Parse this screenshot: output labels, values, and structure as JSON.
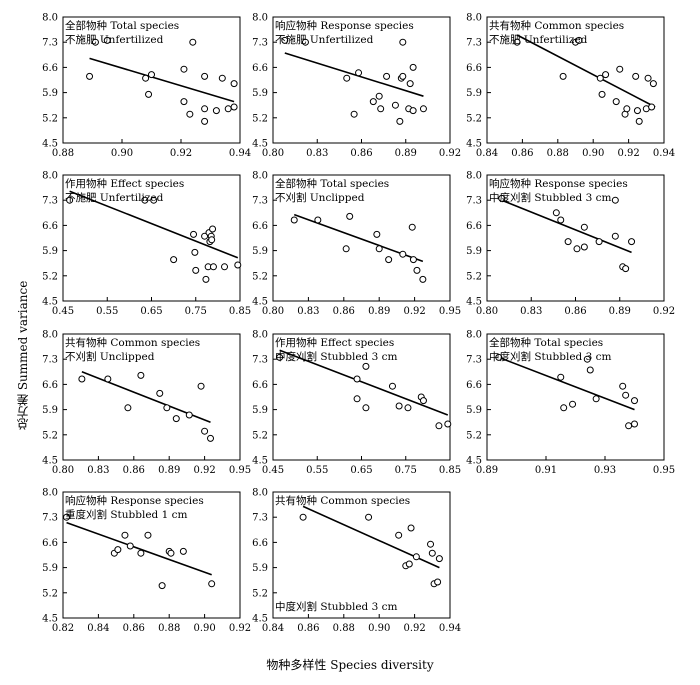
{
  "figure": {
    "ylabel": "总方差 Summed variance",
    "xlabel": "物种多样性 Species diversity",
    "colors": {
      "axis": "#000000",
      "marker": "#000000",
      "line": "#000000"
    }
  },
  "chart_data": [
    {
      "type": "scatter",
      "title": "全部物种 Total species",
      "subtitle": "不施肥 Unfertilized",
      "xlim": [
        0.88,
        0.94
      ],
      "ylim": [
        4.5,
        8.0
      ],
      "xticks": [
        "0.88",
        "0.90",
        "0.92",
        "0.94"
      ],
      "yticks": [
        "4.5",
        "5.2",
        "5.9",
        "6.6",
        "7.3",
        "8.0"
      ],
      "points": [
        [
          0.889,
          6.35
        ],
        [
          0.891,
          7.3
        ],
        [
          0.895,
          7.35
        ],
        [
          0.908,
          6.3
        ],
        [
          0.909,
          5.85
        ],
        [
          0.91,
          6.4
        ],
        [
          0.921,
          5.65
        ],
        [
          0.921,
          6.55
        ],
        [
          0.923,
          5.3
        ],
        [
          0.924,
          7.3
        ],
        [
          0.928,
          6.35
        ],
        [
          0.928,
          5.45
        ],
        [
          0.928,
          5.1
        ],
        [
          0.932,
          5.4
        ],
        [
          0.934,
          6.3
        ],
        [
          0.936,
          5.45
        ],
        [
          0.938,
          6.15
        ],
        [
          0.938,
          5.5
        ]
      ],
      "fit": [
        [
          0.889,
          6.85
        ],
        [
          0.938,
          5.65
        ]
      ]
    },
    {
      "type": "scatter",
      "title": "响应物种 Response species",
      "subtitle": "不施肥 Unfertilized",
      "xlim": [
        0.8,
        0.92
      ],
      "ylim": [
        4.5,
        8.0
      ],
      "xticks": [
        "0.80",
        "0.83",
        "0.86",
        "0.89",
        "0.92"
      ],
      "yticks": [
        "4.5",
        "5.2",
        "5.9",
        "6.6",
        "7.3",
        "8.0"
      ],
      "points": [
        [
          0.808,
          7.35
        ],
        [
          0.822,
          7.3
        ],
        [
          0.85,
          6.3
        ],
        [
          0.855,
          5.3
        ],
        [
          0.858,
          6.45
        ],
        [
          0.868,
          5.65
        ],
        [
          0.872,
          5.8
        ],
        [
          0.873,
          5.45
        ],
        [
          0.877,
          6.35
        ],
        [
          0.883,
          5.55
        ],
        [
          0.886,
          5.1
        ],
        [
          0.887,
          6.3
        ],
        [
          0.888,
          6.35
        ],
        [
          0.888,
          7.3
        ],
        [
          0.892,
          5.45
        ],
        [
          0.893,
          6.15
        ],
        [
          0.895,
          5.4
        ],
        [
          0.895,
          6.6
        ],
        [
          0.902,
          5.45
        ]
      ],
      "fit": [
        [
          0.808,
          7.0
        ],
        [
          0.902,
          5.8
        ]
      ]
    },
    {
      "type": "scatter",
      "title": "共有物种 Common species",
      "subtitle": "不施肥 Unfertilized",
      "xlim": [
        0.84,
        0.94
      ],
      "ylim": [
        4.5,
        8.0
      ],
      "xticks": [
        "0.84",
        "0.86",
        "0.88",
        "0.90",
        "0.92",
        "0.94"
      ],
      "yticks": [
        "4.5",
        "5.2",
        "5.9",
        "6.6",
        "7.3",
        "8.0"
      ],
      "points": [
        [
          0.857,
          7.3
        ],
        [
          0.883,
          6.35
        ],
        [
          0.89,
          7.3
        ],
        [
          0.892,
          7.35
        ],
        [
          0.904,
          6.3
        ],
        [
          0.905,
          5.85
        ],
        [
          0.907,
          6.4
        ],
        [
          0.913,
          5.65
        ],
        [
          0.915,
          6.55
        ],
        [
          0.918,
          5.3
        ],
        [
          0.919,
          5.45
        ],
        [
          0.924,
          6.35
        ],
        [
          0.925,
          5.4
        ],
        [
          0.926,
          5.1
        ],
        [
          0.93,
          5.45
        ],
        [
          0.931,
          6.3
        ],
        [
          0.933,
          5.5
        ],
        [
          0.934,
          6.15
        ]
      ],
      "fit": [
        [
          0.857,
          7.5
        ],
        [
          0.935,
          5.5
        ]
      ]
    },
    {
      "type": "scatter",
      "title": "作用物种 Effect species",
      "subtitle": "不施肥 Unfertilized",
      "xlim": [
        0.45,
        0.85
      ],
      "ylim": [
        4.5,
        8.0
      ],
      "xticks": [
        "0.45",
        "0.55",
        "0.65",
        "0.75",
        "0.85"
      ],
      "yticks": [
        "4.5",
        "5.2",
        "5.9",
        "6.6",
        "7.3",
        "8.0"
      ],
      "points": [
        [
          0.465,
          7.3
        ],
        [
          0.635,
          7.3
        ],
        [
          0.655,
          7.3
        ],
        [
          0.7,
          5.65
        ],
        [
          0.745,
          6.35
        ],
        [
          0.748,
          5.85
        ],
        [
          0.75,
          5.35
        ],
        [
          0.77,
          6.3
        ],
        [
          0.773,
          5.1
        ],
        [
          0.778,
          5.45
        ],
        [
          0.78,
          6.4
        ],
        [
          0.782,
          6.15
        ],
        [
          0.785,
          6.3
        ],
        [
          0.786,
          6.2
        ],
        [
          0.788,
          6.5
        ],
        [
          0.79,
          5.45
        ],
        [
          0.815,
          5.45
        ],
        [
          0.845,
          5.5
        ]
      ],
      "fit": [
        [
          0.465,
          7.55
        ],
        [
          0.845,
          5.7
        ]
      ]
    },
    {
      "type": "scatter",
      "title": "全部物种 Total species",
      "subtitle": "不刈割 Unclipped",
      "xlim": [
        0.8,
        0.95
      ],
      "ylim": [
        4.5,
        8.0
      ],
      "xticks": [
        "0.80",
        "0.83",
        "0.86",
        "0.89",
        "0.92",
        "0.95"
      ],
      "yticks": [
        "4.5",
        "5.2",
        "5.9",
        "6.6",
        "7.3",
        "8.0"
      ],
      "points": [
        [
          0.818,
          6.75
        ],
        [
          0.838,
          6.75
        ],
        [
          0.862,
          5.95
        ],
        [
          0.865,
          6.85
        ],
        [
          0.888,
          6.35
        ],
        [
          0.89,
          5.95
        ],
        [
          0.898,
          5.65
        ],
        [
          0.91,
          5.8
        ],
        [
          0.918,
          6.55
        ],
        [
          0.919,
          5.65
        ],
        [
          0.922,
          5.35
        ],
        [
          0.927,
          5.1
        ]
      ],
      "fit": [
        [
          0.818,
          6.9
        ],
        [
          0.927,
          5.6
        ]
      ]
    },
    {
      "type": "scatter",
      "title": "响应物种 Response species",
      "subtitle": "中度刈割 Stubbled 3 cm",
      "xlim": [
        0.8,
        0.92
      ],
      "ylim": [
        4.5,
        8.0
      ],
      "xticks": [
        "0.80",
        "0.83",
        "0.86",
        "0.89",
        "0.92"
      ],
      "yticks": [
        "4.5",
        "5.2",
        "5.9",
        "6.6",
        "7.3",
        "8.0"
      ],
      "points": [
        [
          0.81,
          7.35
        ],
        [
          0.847,
          6.95
        ],
        [
          0.85,
          6.75
        ],
        [
          0.855,
          6.15
        ],
        [
          0.861,
          5.95
        ],
        [
          0.866,
          6.55
        ],
        [
          0.866,
          6.0
        ],
        [
          0.876,
          6.15
        ],
        [
          0.887,
          7.3
        ],
        [
          0.887,
          6.3
        ],
        [
          0.892,
          5.45
        ],
        [
          0.894,
          5.4
        ],
        [
          0.898,
          6.15
        ]
      ],
      "fit": [
        [
          0.81,
          7.3
        ],
        [
          0.898,
          5.85
        ]
      ]
    },
    {
      "type": "scatter",
      "title": "共有物种 Common species",
      "subtitle": "不刈割 Unclipped",
      "xlim": [
        0.8,
        0.95
      ],
      "ylim": [
        4.5,
        8.0
      ],
      "xticks": [
        "0.80",
        "0.83",
        "0.86",
        "0.89",
        "0.92",
        "0.95"
      ],
      "yticks": [
        "4.5",
        "5.2",
        "5.9",
        "6.6",
        "7.3",
        "8.0"
      ],
      "points": [
        [
          0.816,
          6.75
        ],
        [
          0.838,
          6.75
        ],
        [
          0.855,
          5.95
        ],
        [
          0.866,
          6.85
        ],
        [
          0.882,
          6.35
        ],
        [
          0.888,
          5.95
        ],
        [
          0.896,
          5.65
        ],
        [
          0.907,
          5.75
        ],
        [
          0.917,
          6.55
        ],
        [
          0.92,
          5.3
        ],
        [
          0.925,
          5.1
        ]
      ],
      "fit": [
        [
          0.816,
          6.95
        ],
        [
          0.925,
          5.55
        ]
      ]
    },
    {
      "type": "scatter",
      "title": "作用物种 Effect species",
      "subtitle": "中度刈割 Stubbled 3 cm",
      "xlim": [
        0.45,
        0.85
      ],
      "ylim": [
        4.5,
        8.0
      ],
      "xticks": [
        "0.45",
        "0.55",
        "0.65",
        "0.75",
        "0.85"
      ],
      "yticks": [
        "4.5",
        "5.2",
        "5.9",
        "6.6",
        "7.3",
        "8.0"
      ],
      "points": [
        [
          0.465,
          7.35
        ],
        [
          0.64,
          6.75
        ],
        [
          0.64,
          6.2
        ],
        [
          0.66,
          7.1
        ],
        [
          0.66,
          5.95
        ],
        [
          0.72,
          6.55
        ],
        [
          0.735,
          6.0
        ],
        [
          0.755,
          5.95
        ],
        [
          0.785,
          6.25
        ],
        [
          0.79,
          6.15
        ],
        [
          0.825,
          5.45
        ],
        [
          0.845,
          5.5
        ]
      ],
      "fit": [
        [
          0.465,
          7.55
        ],
        [
          0.845,
          5.75
        ]
      ]
    },
    {
      "type": "scatter",
      "title": "全部物种 Total species",
      "subtitle": "中度刈割 Stubbled 3 cm",
      "xlim": [
        0.89,
        0.95
      ],
      "ylim": [
        4.5,
        8.0
      ],
      "xticks": [
        "0.89",
        "0.91",
        "0.93",
        "0.95"
      ],
      "yticks": [
        "4.5",
        "5.2",
        "5.9",
        "6.6",
        "7.3",
        "8.0"
      ],
      "points": [
        [
          0.894,
          7.35
        ],
        [
          0.915,
          6.8
        ],
        [
          0.916,
          5.95
        ],
        [
          0.919,
          6.05
        ],
        [
          0.924,
          7.3
        ],
        [
          0.925,
          7.0
        ],
        [
          0.927,
          6.2
        ],
        [
          0.936,
          6.55
        ],
        [
          0.937,
          6.3
        ],
        [
          0.938,
          5.45
        ],
        [
          0.94,
          5.5
        ],
        [
          0.94,
          6.15
        ]
      ],
      "fit": [
        [
          0.894,
          7.35
        ],
        [
          0.94,
          5.9
        ]
      ]
    },
    {
      "type": "scatter",
      "title": "响应物种 Response species",
      "subtitle": "重度刈割 Stubbled 1 cm",
      "xlim": [
        0.82,
        0.92
      ],
      "ylim": [
        4.5,
        8.0
      ],
      "xticks": [
        "0.82",
        "0.84",
        "0.86",
        "0.88",
        "0.90",
        "0.92"
      ],
      "yticks": [
        "4.5",
        "5.2",
        "5.9",
        "6.6",
        "7.3",
        "8.0"
      ],
      "points": [
        [
          0.822,
          7.3
        ],
        [
          0.849,
          6.3
        ],
        [
          0.851,
          6.4
        ],
        [
          0.855,
          6.8
        ],
        [
          0.858,
          6.5
        ],
        [
          0.864,
          6.3
        ],
        [
          0.868,
          6.8
        ],
        [
          0.876,
          5.4
        ],
        [
          0.88,
          6.35
        ],
        [
          0.881,
          6.3
        ],
        [
          0.888,
          6.35
        ],
        [
          0.904,
          5.45
        ]
      ],
      "fit": [
        [
          0.822,
          7.15
        ],
        [
          0.904,
          5.7
        ]
      ]
    },
    {
      "type": "scatter",
      "title": "共有物种 Common species",
      "subtitle": "中度刈割 Stubbled 3 cm",
      "xlim": [
        0.84,
        0.94
      ],
      "ylim": [
        4.5,
        8.0
      ],
      "xticks": [
        "0.84",
        "0.86",
        "0.88",
        "0.90",
        "0.92",
        "0.94"
      ],
      "yticks": [
        "4.5",
        "5.2",
        "5.9",
        "6.6",
        "7.3",
        "8.0"
      ],
      "points": [
        [
          0.857,
          7.3
        ],
        [
          0.894,
          7.3
        ],
        [
          0.911,
          6.8
        ],
        [
          0.915,
          5.95
        ],
        [
          0.917,
          6.0
        ],
        [
          0.918,
          7.0
        ],
        [
          0.921,
          6.2
        ],
        [
          0.929,
          6.55
        ],
        [
          0.93,
          6.3
        ],
        [
          0.931,
          5.45
        ],
        [
          0.933,
          5.5
        ],
        [
          0.934,
          6.15
        ]
      ],
      "fit": [
        [
          0.857,
          7.6
        ],
        [
          0.934,
          5.9
        ]
      ]
    }
  ]
}
